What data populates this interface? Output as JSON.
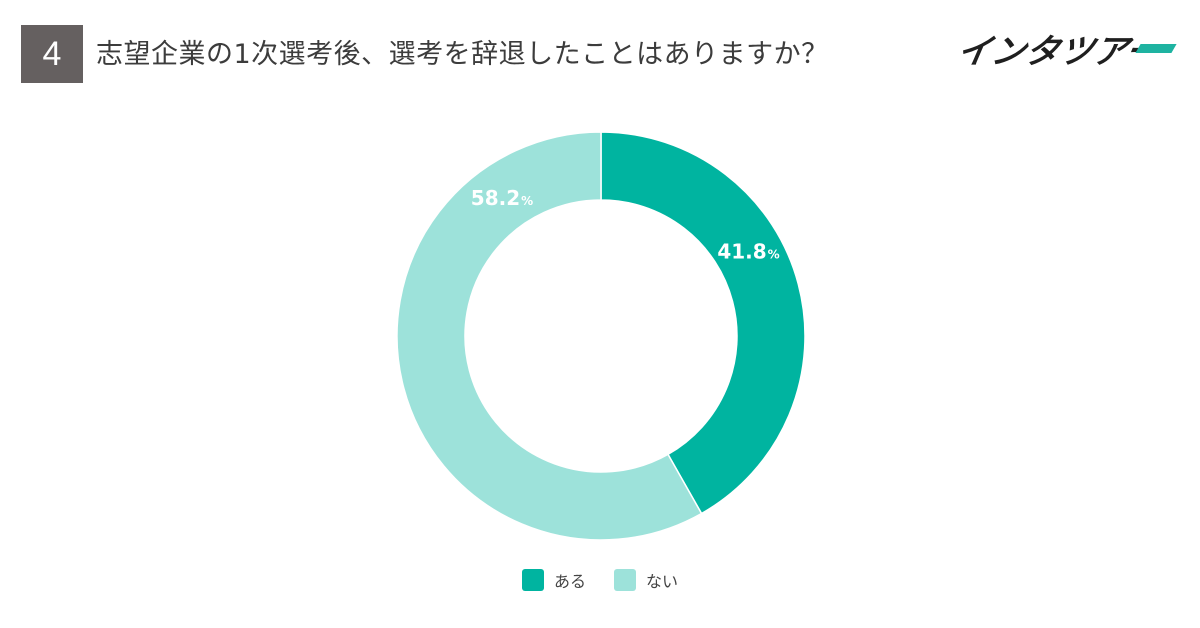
{
  "header": {
    "number": "4",
    "title": "志望企業の1次選考後、選考を辞退したことはありますか？",
    "logo": "インタツアー"
  },
  "chart_data": {
    "type": "pie",
    "variant": "donut",
    "title": "志望企業の1次選考後、選考を辞退したことはありますか？",
    "slices": [
      {
        "label": "ある",
        "value": 41.8,
        "display": "41.8",
        "color": "#00b4a0"
      },
      {
        "label": "ない",
        "value": 58.2,
        "display": "58.2",
        "color": "#9de2da"
      }
    ],
    "unit": "%",
    "legend_position": "bottom"
  }
}
